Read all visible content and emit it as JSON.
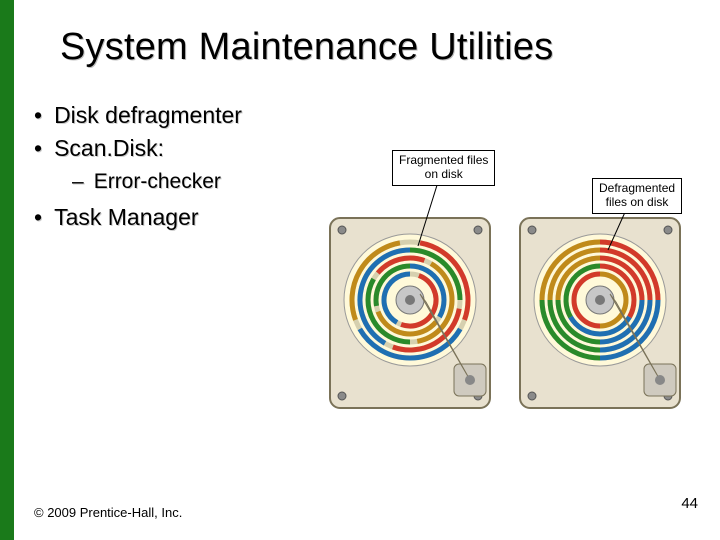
{
  "title": "System Maintenance Utilities",
  "bullets": {
    "item1": "Disk defragmenter",
    "item2": "Scan.Disk:",
    "sub1": "Error-checker",
    "item3": "Task Manager"
  },
  "figure": {
    "callout_left": "Fragmented files\non disk",
    "callout_right": "Defragmented\nfiles on disk",
    "disk_left": {
      "label": "fragmented",
      "chassis_fill": "#e8e1cf",
      "chassis_stroke": "#7a7258",
      "platter_fill": "#fff9d9",
      "spindle_fill": "#c7c7c7",
      "tracks": [
        {
          "r": 58,
          "segs": [
            {
              "a0": 10,
              "a1": 110,
              "c": "#d23a2a"
            },
            {
              "a0": 120,
              "a1": 240,
              "c": "#1f6fb2"
            },
            {
              "a0": 250,
              "a1": 350,
              "c": "#c08a1a"
            }
          ]
        },
        {
          "r": 50,
          "segs": [
            {
              "a0": 0,
              "a1": 90,
              "c": "#2a8a2a"
            },
            {
              "a0": 100,
              "a1": 200,
              "c": "#d23a2a"
            },
            {
              "a0": 210,
              "a1": 360,
              "c": "#1f6fb2"
            }
          ]
        },
        {
          "r": 42,
          "segs": [
            {
              "a0": 30,
              "a1": 170,
              "c": "#c08a1a"
            },
            {
              "a0": 180,
              "a1": 300,
              "c": "#2a8a2a"
            },
            {
              "a0": 310,
              "a1": 20,
              "c": "#d23a2a"
            }
          ]
        },
        {
          "r": 34,
          "segs": [
            {
              "a0": 0,
              "a1": 120,
              "c": "#1f6fb2"
            },
            {
              "a0": 130,
              "a1": 250,
              "c": "#c08a1a"
            },
            {
              "a0": 260,
              "a1": 360,
              "c": "#2a8a2a"
            }
          ]
        },
        {
          "r": 26,
          "segs": [
            {
              "a0": 20,
              "a1": 200,
              "c": "#d23a2a"
            },
            {
              "a0": 210,
              "a1": 360,
              "c": "#1f6fb2"
            }
          ]
        }
      ]
    },
    "disk_right": {
      "label": "defragmented",
      "chassis_fill": "#e8e1cf",
      "chassis_stroke": "#7a7258",
      "platter_fill": "#fff9d9",
      "spindle_fill": "#c7c7c7",
      "tracks": [
        {
          "r": 58,
          "segs": [
            {
              "a0": 0,
              "a1": 90,
              "c": "#d23a2a"
            },
            {
              "a0": 90,
              "a1": 180,
              "c": "#1f6fb2"
            },
            {
              "a0": 180,
              "a1": 270,
              "c": "#2a8a2a"
            },
            {
              "a0": 270,
              "a1": 360,
              "c": "#c08a1a"
            }
          ]
        },
        {
          "r": 50,
          "segs": [
            {
              "a0": 0,
              "a1": 90,
              "c": "#d23a2a"
            },
            {
              "a0": 90,
              "a1": 180,
              "c": "#1f6fb2"
            },
            {
              "a0": 180,
              "a1": 270,
              "c": "#2a8a2a"
            },
            {
              "a0": 270,
              "a1": 360,
              "c": "#c08a1a"
            }
          ]
        },
        {
          "r": 42,
          "segs": [
            {
              "a0": 0,
              "a1": 90,
              "c": "#d23a2a"
            },
            {
              "a0": 90,
              "a1": 180,
              "c": "#1f6fb2"
            },
            {
              "a0": 180,
              "a1": 270,
              "c": "#2a8a2a"
            },
            {
              "a0": 270,
              "a1": 360,
              "c": "#c08a1a"
            }
          ]
        },
        {
          "r": 34,
          "segs": [
            {
              "a0": 0,
              "a1": 120,
              "c": "#d23a2a"
            },
            {
              "a0": 120,
              "a1": 240,
              "c": "#1f6fb2"
            },
            {
              "a0": 240,
              "a1": 360,
              "c": "#2a8a2a"
            }
          ]
        },
        {
          "r": 26,
          "segs": [
            {
              "a0": 0,
              "a1": 180,
              "c": "#c08a1a"
            },
            {
              "a0": 180,
              "a1": 360,
              "c": "#d23a2a"
            }
          ]
        }
      ]
    }
  },
  "footer": {
    "copyright": "© 2009 Prentice-Hall, Inc.",
    "page": "44"
  },
  "colors": {
    "stripe": "#1a7a1a"
  }
}
